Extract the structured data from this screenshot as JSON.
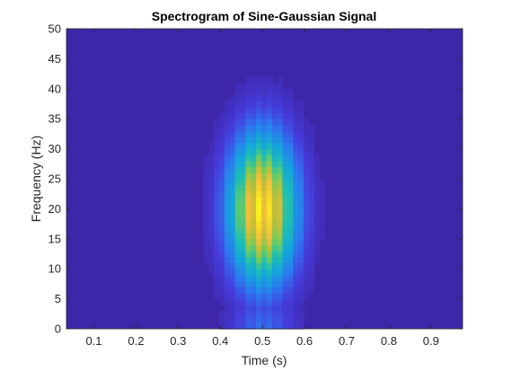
{
  "chart_data": {
    "type": "heatmap",
    "title": "Spectrogram of Sine-Gaussian Signal",
    "xlabel": "Time (s)",
    "ylabel": "Frequency (Hz)",
    "xlim": [
      0.035,
      0.975
    ],
    "ylim": [
      0,
      50
    ],
    "x_ticks": [
      0.1,
      0.2,
      0.3,
      0.4,
      0.5,
      0.6,
      0.7,
      0.8,
      0.9
    ],
    "y_ticks": [
      0,
      5,
      10,
      15,
      20,
      25,
      30,
      35,
      40,
      45,
      50
    ],
    "x_tick_labels": [
      "0.1",
      "0.2",
      "0.3",
      "0.4",
      "0.5",
      "0.6",
      "0.7",
      "0.8",
      "0.9"
    ],
    "y_tick_labels": [
      "0",
      "5",
      "10",
      "15",
      "20",
      "25",
      "30",
      "35",
      "40",
      "45",
      "50"
    ],
    "colormap": "parula",
    "background_color": "#3e26a8",
    "peak": {
      "time": 0.5,
      "frequency": 20
    },
    "time_spread": 0.055,
    "frequency_spread": 8.5,
    "grid": false
  }
}
